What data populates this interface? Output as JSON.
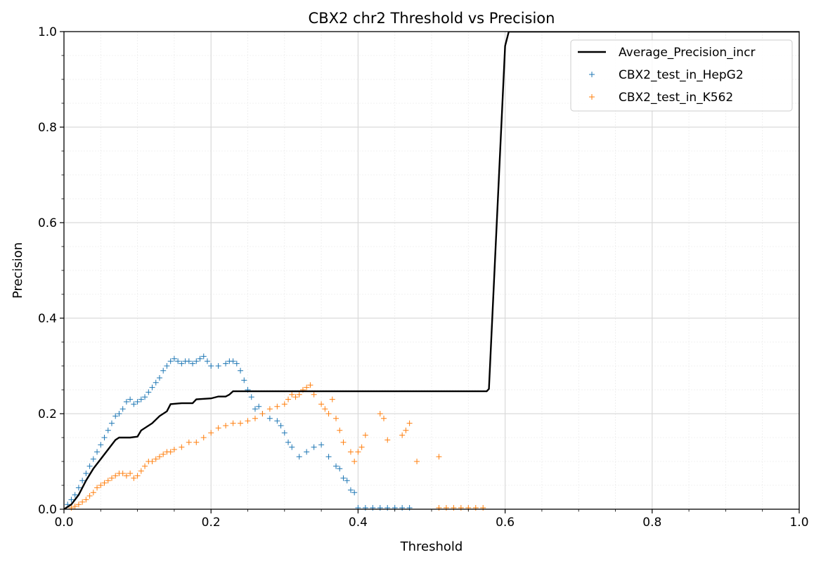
{
  "chart_data": {
    "type": "scatter",
    "title": "CBX2 chr2 Threshold vs Precision",
    "xlabel": "Threshold",
    "ylabel": "Precision",
    "xlim": [
      0.0,
      1.0
    ],
    "ylim": [
      0.0,
      1.0
    ],
    "xticks": [
      "0.0",
      "0.2",
      "0.4",
      "0.6",
      "0.8",
      "1.0"
    ],
    "yticks": [
      "0.0",
      "0.2",
      "0.4",
      "0.6",
      "0.8",
      "1.0"
    ],
    "grid": true,
    "legend_position": "top-right",
    "series": [
      {
        "name": "Average_Precision_incr",
        "kind": "line",
        "color": "#000000",
        "x": [
          0.0,
          0.01,
          0.02,
          0.03,
          0.04,
          0.05,
          0.06,
          0.07,
          0.075,
          0.09,
          0.1,
          0.105,
          0.12,
          0.13,
          0.14,
          0.145,
          0.16,
          0.175,
          0.18,
          0.2,
          0.21,
          0.22,
          0.225,
          0.23,
          0.24,
          0.3,
          0.4,
          0.5,
          0.575,
          0.578,
          0.6,
          0.605,
          0.62,
          0.7,
          0.8,
          0.9,
          1.0
        ],
        "y": [
          0.0,
          0.01,
          0.03,
          0.06,
          0.085,
          0.105,
          0.125,
          0.145,
          0.15,
          0.15,
          0.152,
          0.165,
          0.18,
          0.195,
          0.205,
          0.22,
          0.222,
          0.222,
          0.23,
          0.232,
          0.236,
          0.236,
          0.24,
          0.247,
          0.247,
          0.247,
          0.247,
          0.247,
          0.247,
          0.252,
          0.97,
          1.0,
          1.0,
          1.0,
          1.0,
          1.0,
          1.0
        ]
      },
      {
        "name": "CBX2_test_in_HepG2",
        "kind": "scatter",
        "marker": "+",
        "color": "#1f77b4",
        "x": [
          0.005,
          0.01,
          0.015,
          0.02,
          0.025,
          0.03,
          0.035,
          0.04,
          0.045,
          0.05,
          0.055,
          0.06,
          0.065,
          0.07,
          0.075,
          0.08,
          0.085,
          0.09,
          0.095,
          0.1,
          0.105,
          0.11,
          0.115,
          0.12,
          0.125,
          0.13,
          0.135,
          0.14,
          0.145,
          0.15,
          0.155,
          0.16,
          0.165,
          0.17,
          0.175,
          0.18,
          0.185,
          0.19,
          0.195,
          0.2,
          0.21,
          0.22,
          0.225,
          0.23,
          0.235,
          0.24,
          0.245,
          0.25,
          0.255,
          0.26,
          0.265,
          0.27,
          0.28,
          0.29,
          0.295,
          0.3,
          0.305,
          0.31,
          0.32,
          0.33,
          0.34,
          0.35,
          0.36,
          0.37,
          0.375,
          0.38,
          0.385,
          0.39,
          0.395,
          0.4,
          0.41,
          0.42,
          0.43,
          0.44,
          0.45,
          0.46,
          0.47
        ],
        "y": [
          0.01,
          0.02,
          0.03,
          0.045,
          0.06,
          0.075,
          0.09,
          0.105,
          0.12,
          0.135,
          0.15,
          0.165,
          0.18,
          0.195,
          0.2,
          0.21,
          0.225,
          0.23,
          0.22,
          0.225,
          0.23,
          0.235,
          0.245,
          0.255,
          0.265,
          0.275,
          0.29,
          0.3,
          0.31,
          0.315,
          0.31,
          0.305,
          0.31,
          0.31,
          0.305,
          0.31,
          0.315,
          0.32,
          0.31,
          0.3,
          0.3,
          0.305,
          0.31,
          0.31,
          0.305,
          0.29,
          0.27,
          0.25,
          0.235,
          0.21,
          0.215,
          0.2,
          0.19,
          0.185,
          0.175,
          0.16,
          0.14,
          0.13,
          0.11,
          0.12,
          0.13,
          0.135,
          0.11,
          0.09,
          0.085,
          0.065,
          0.06,
          0.04,
          0.035,
          0.003,
          0.003,
          0.003,
          0.003,
          0.003,
          0.003,
          0.003,
          0.003
        ]
      },
      {
        "name": "CBX2_test_in_K562",
        "kind": "scatter",
        "marker": "+",
        "color": "#ff7f0e",
        "x": [
          0.01,
          0.015,
          0.02,
          0.025,
          0.03,
          0.035,
          0.04,
          0.045,
          0.05,
          0.055,
          0.06,
          0.065,
          0.07,
          0.075,
          0.08,
          0.085,
          0.09,
          0.095,
          0.1,
          0.105,
          0.11,
          0.115,
          0.12,
          0.125,
          0.13,
          0.135,
          0.14,
          0.145,
          0.15,
          0.16,
          0.17,
          0.18,
          0.19,
          0.2,
          0.21,
          0.22,
          0.23,
          0.24,
          0.25,
          0.26,
          0.27,
          0.28,
          0.29,
          0.3,
          0.305,
          0.31,
          0.315,
          0.32,
          0.325,
          0.33,
          0.335,
          0.34,
          0.35,
          0.355,
          0.36,
          0.365,
          0.37,
          0.375,
          0.38,
          0.39,
          0.395,
          0.4,
          0.405,
          0.41,
          0.43,
          0.435,
          0.44,
          0.46,
          0.465,
          0.47,
          0.48,
          0.51,
          0.51,
          0.52,
          0.53,
          0.54,
          0.55,
          0.56,
          0.57
        ],
        "y": [
          0.003,
          0.006,
          0.01,
          0.015,
          0.02,
          0.028,
          0.035,
          0.045,
          0.05,
          0.055,
          0.06,
          0.065,
          0.07,
          0.075,
          0.075,
          0.07,
          0.075,
          0.065,
          0.07,
          0.08,
          0.09,
          0.1,
          0.1,
          0.105,
          0.11,
          0.115,
          0.12,
          0.12,
          0.125,
          0.13,
          0.14,
          0.14,
          0.15,
          0.16,
          0.17,
          0.175,
          0.18,
          0.18,
          0.185,
          0.19,
          0.2,
          0.21,
          0.215,
          0.22,
          0.23,
          0.24,
          0.235,
          0.24,
          0.25,
          0.255,
          0.26,
          0.24,
          0.22,
          0.21,
          0.2,
          0.23,
          0.19,
          0.165,
          0.14,
          0.12,
          0.1,
          0.12,
          0.13,
          0.155,
          0.2,
          0.19,
          0.145,
          0.155,
          0.165,
          0.18,
          0.1,
          0.11,
          0.003,
          0.003,
          0.003,
          0.003,
          0.003,
          0.003,
          0.003
        ]
      }
    ]
  }
}
